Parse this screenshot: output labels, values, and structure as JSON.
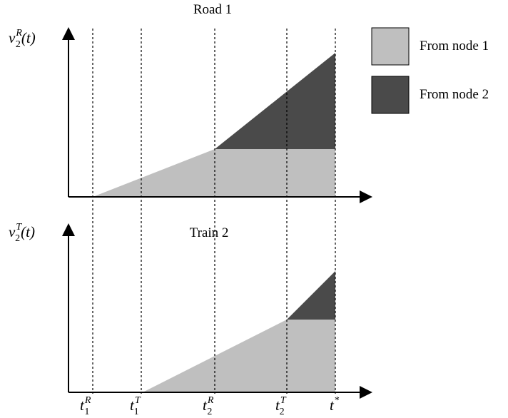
{
  "panels": {
    "top": {
      "title": "Road 1",
      "y_label": {
        "base": "v",
        "sub": "2",
        "sup": "R",
        "arg": "(t)"
      }
    },
    "bottom": {
      "title": "Train 2",
      "y_label": {
        "base": "v",
        "sub": "2",
        "sup": "T",
        "arg": "(t)"
      }
    }
  },
  "legend": [
    {
      "label": "From node 1",
      "color": "#bfbfbf"
    },
    {
      "label": "From node 2",
      "color": "#4a4a4a"
    }
  ],
  "x_ticks": [
    {
      "base": "t",
      "sub": "1",
      "sup": "R"
    },
    {
      "base": "t",
      "sub": "1",
      "sup": "T"
    },
    {
      "base": "t",
      "sub": "2",
      "sup": "R"
    },
    {
      "base": "t",
      "sub": "2",
      "sup": "T"
    },
    {
      "base": "t",
      "sub": "",
      "sup": "*"
    }
  ]
}
